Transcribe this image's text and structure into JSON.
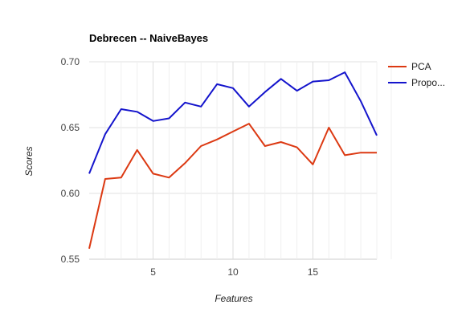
{
  "chart_data": {
    "type": "line",
    "title": "Debrecen -- NaiveBayes",
    "xlabel": "Features",
    "ylabel": "Scores",
    "x": [
      1,
      2,
      3,
      4,
      5,
      6,
      7,
      8,
      9,
      10,
      11,
      12,
      13,
      14,
      15,
      16,
      17,
      18,
      19
    ],
    "xlim": [
      1,
      19
    ],
    "ylim": [
      0.55,
      0.7
    ],
    "xticks": [
      "5",
      "10",
      "15"
    ],
    "yticks": [
      "0.55",
      "0.60",
      "0.65",
      "0.70"
    ],
    "grid": true,
    "legend_position": "right",
    "series": [
      {
        "name": "PCA",
        "color": "#dc3912",
        "values": [
          0.558,
          0.611,
          0.612,
          0.633,
          0.615,
          0.612,
          0.623,
          0.636,
          0.641,
          0.647,
          0.653,
          0.636,
          0.639,
          0.635,
          0.622,
          0.65,
          0.629,
          0.631,
          0.631
        ]
      },
      {
        "name": "Propo...",
        "color": "#1414cc",
        "values": [
          0.615,
          0.645,
          0.664,
          0.662,
          0.655,
          0.657,
          0.669,
          0.666,
          0.683,
          0.68,
          0.666,
          0.677,
          0.687,
          0.678,
          0.685,
          0.686,
          0.692,
          0.67,
          0.644
        ]
      }
    ]
  }
}
